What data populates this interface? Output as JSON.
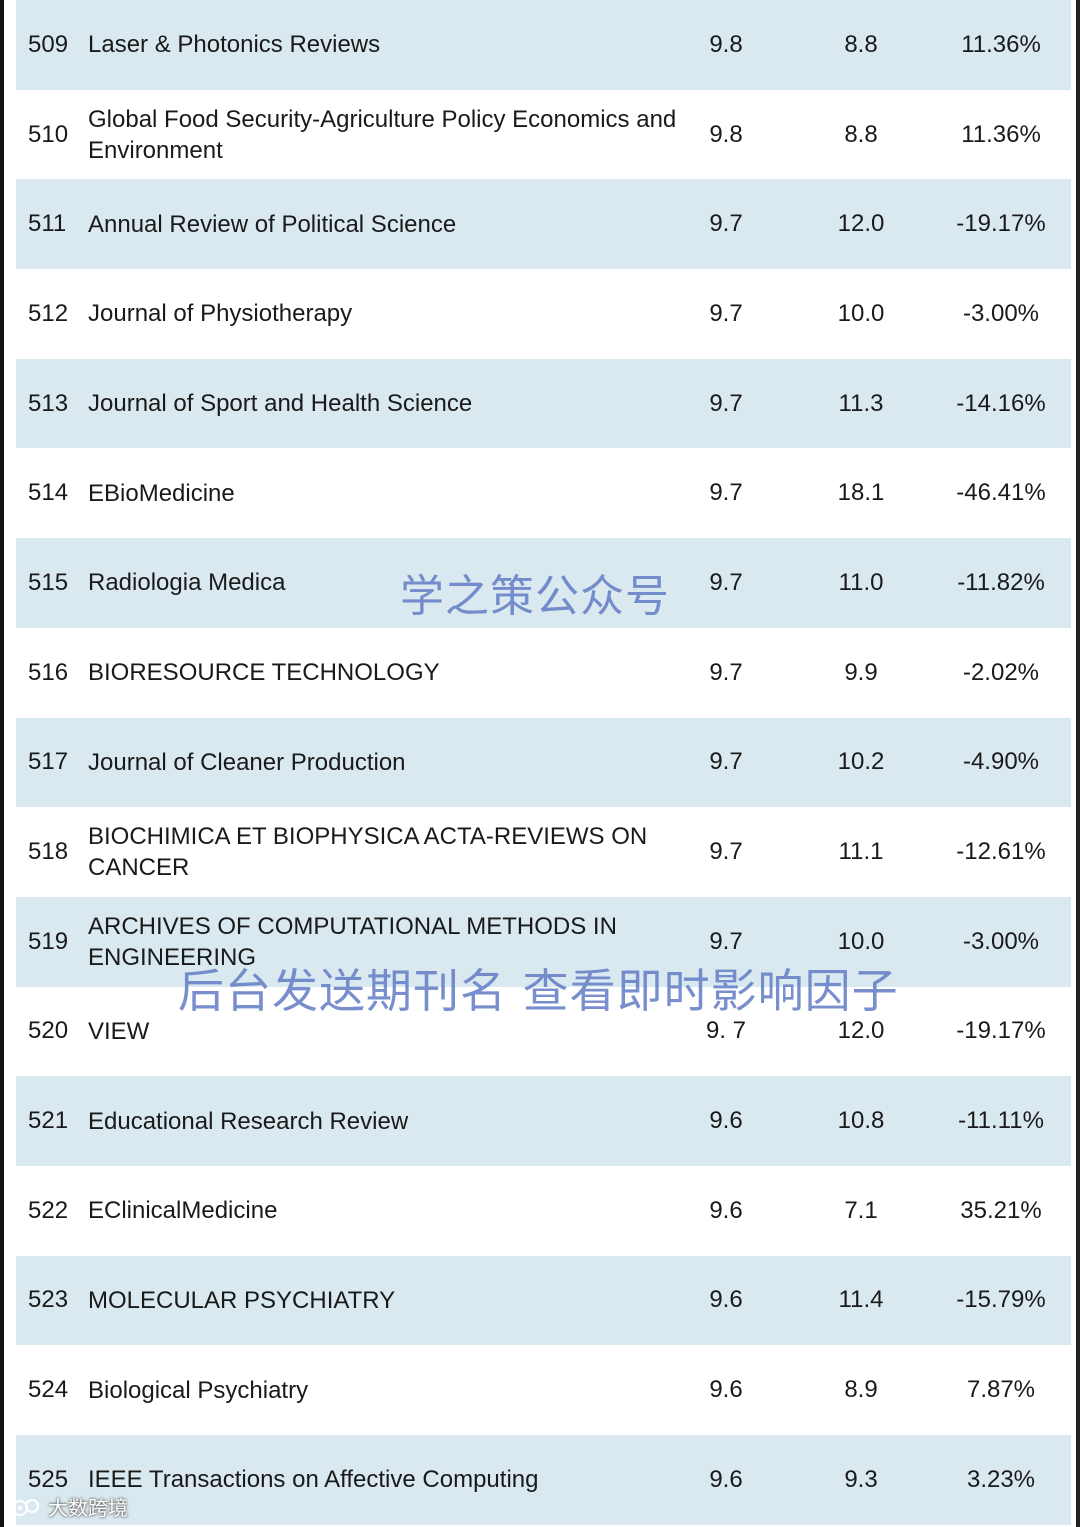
{
  "rows": [
    {
      "rank": "509",
      "name": "Laser & Photonics Reviews",
      "if2": "9.8",
      "if1": "8.8",
      "change": "11.36%"
    },
    {
      "rank": "510",
      "name": "Global Food Security-Agriculture Policy Economics and Environment",
      "if2": "9.8",
      "if1": "8.8",
      "change": "11.36%"
    },
    {
      "rank": "511",
      "name": "Annual Review of Political Science",
      "if2": "9.7",
      "if1": "12.0",
      "change": "-19.17%"
    },
    {
      "rank": "512",
      "name": "Journal of Physiotherapy",
      "if2": "9.7",
      "if1": "10.0",
      "change": "-3.00%"
    },
    {
      "rank": "513",
      "name": "Journal of Sport and Health Science",
      "if2": "9.7",
      "if1": "11.3",
      "change": "-14.16%"
    },
    {
      "rank": "514",
      "name": "EBioMedicine",
      "if2": "9.7",
      "if1": "18.1",
      "change": "-46.41%"
    },
    {
      "rank": "515",
      "name": "Radiologia Medica",
      "if2": "9.7",
      "if1": "11.0",
      "change": "-11.82%"
    },
    {
      "rank": "516",
      "name": "BIORESOURCE TECHNOLOGY",
      "if2": "9.7",
      "if1": "9.9",
      "change": "-2.02%"
    },
    {
      "rank": "517",
      "name": "Journal of Cleaner Production",
      "if2": "9.7",
      "if1": "10.2",
      "change": "-4.90%"
    },
    {
      "rank": "518",
      "name": "BIOCHIMICA ET BIOPHYSICA ACTA-REVIEWS ON CANCER",
      "if2": "9.7",
      "if1": "11.1",
      "change": "-12.61%"
    },
    {
      "rank": "519",
      "name": "ARCHIVES OF COMPUTATIONAL METHODS IN ENGINEERING",
      "if2": "9.7",
      "if1": "10.0",
      "change": "-3.00%"
    },
    {
      "rank": "520",
      "name": "VIEW",
      "if2": "9. 7",
      "if1": "12.0",
      "change": "-19.17%"
    },
    {
      "rank": "521",
      "name": "Educational Research Review",
      "if2": "9.6",
      "if1": "10.8",
      "change": "-11.11%"
    },
    {
      "rank": "522",
      "name": "EClinicalMedicine",
      "if2": "9.6",
      "if1": "7.1",
      "change": "35.21%"
    },
    {
      "rank": "523",
      "name": "MOLECULAR PSYCHIATRY",
      "if2": "9.6",
      "if1": "11.4",
      "change": "-15.79%"
    },
    {
      "rank": "524",
      "name": "Biological Psychiatry",
      "if2": "9.6",
      "if1": "8.9",
      "change": "7.87%"
    },
    {
      "rank": "525",
      "name": "IEEE Transactions on Affective Computing",
      "if2": "9.6",
      "if1": "9.3",
      "change": "3.23%"
    }
  ],
  "watermarks": {
    "top": "学之策公众号",
    "bottom": "后台发送期刊名 查看即时影响因子",
    "corner": "大数跨境"
  },
  "colors": {
    "row_shaded": "#d9e9ef",
    "row_plain": "#ffffff",
    "watermark": "#6a82c8"
  }
}
